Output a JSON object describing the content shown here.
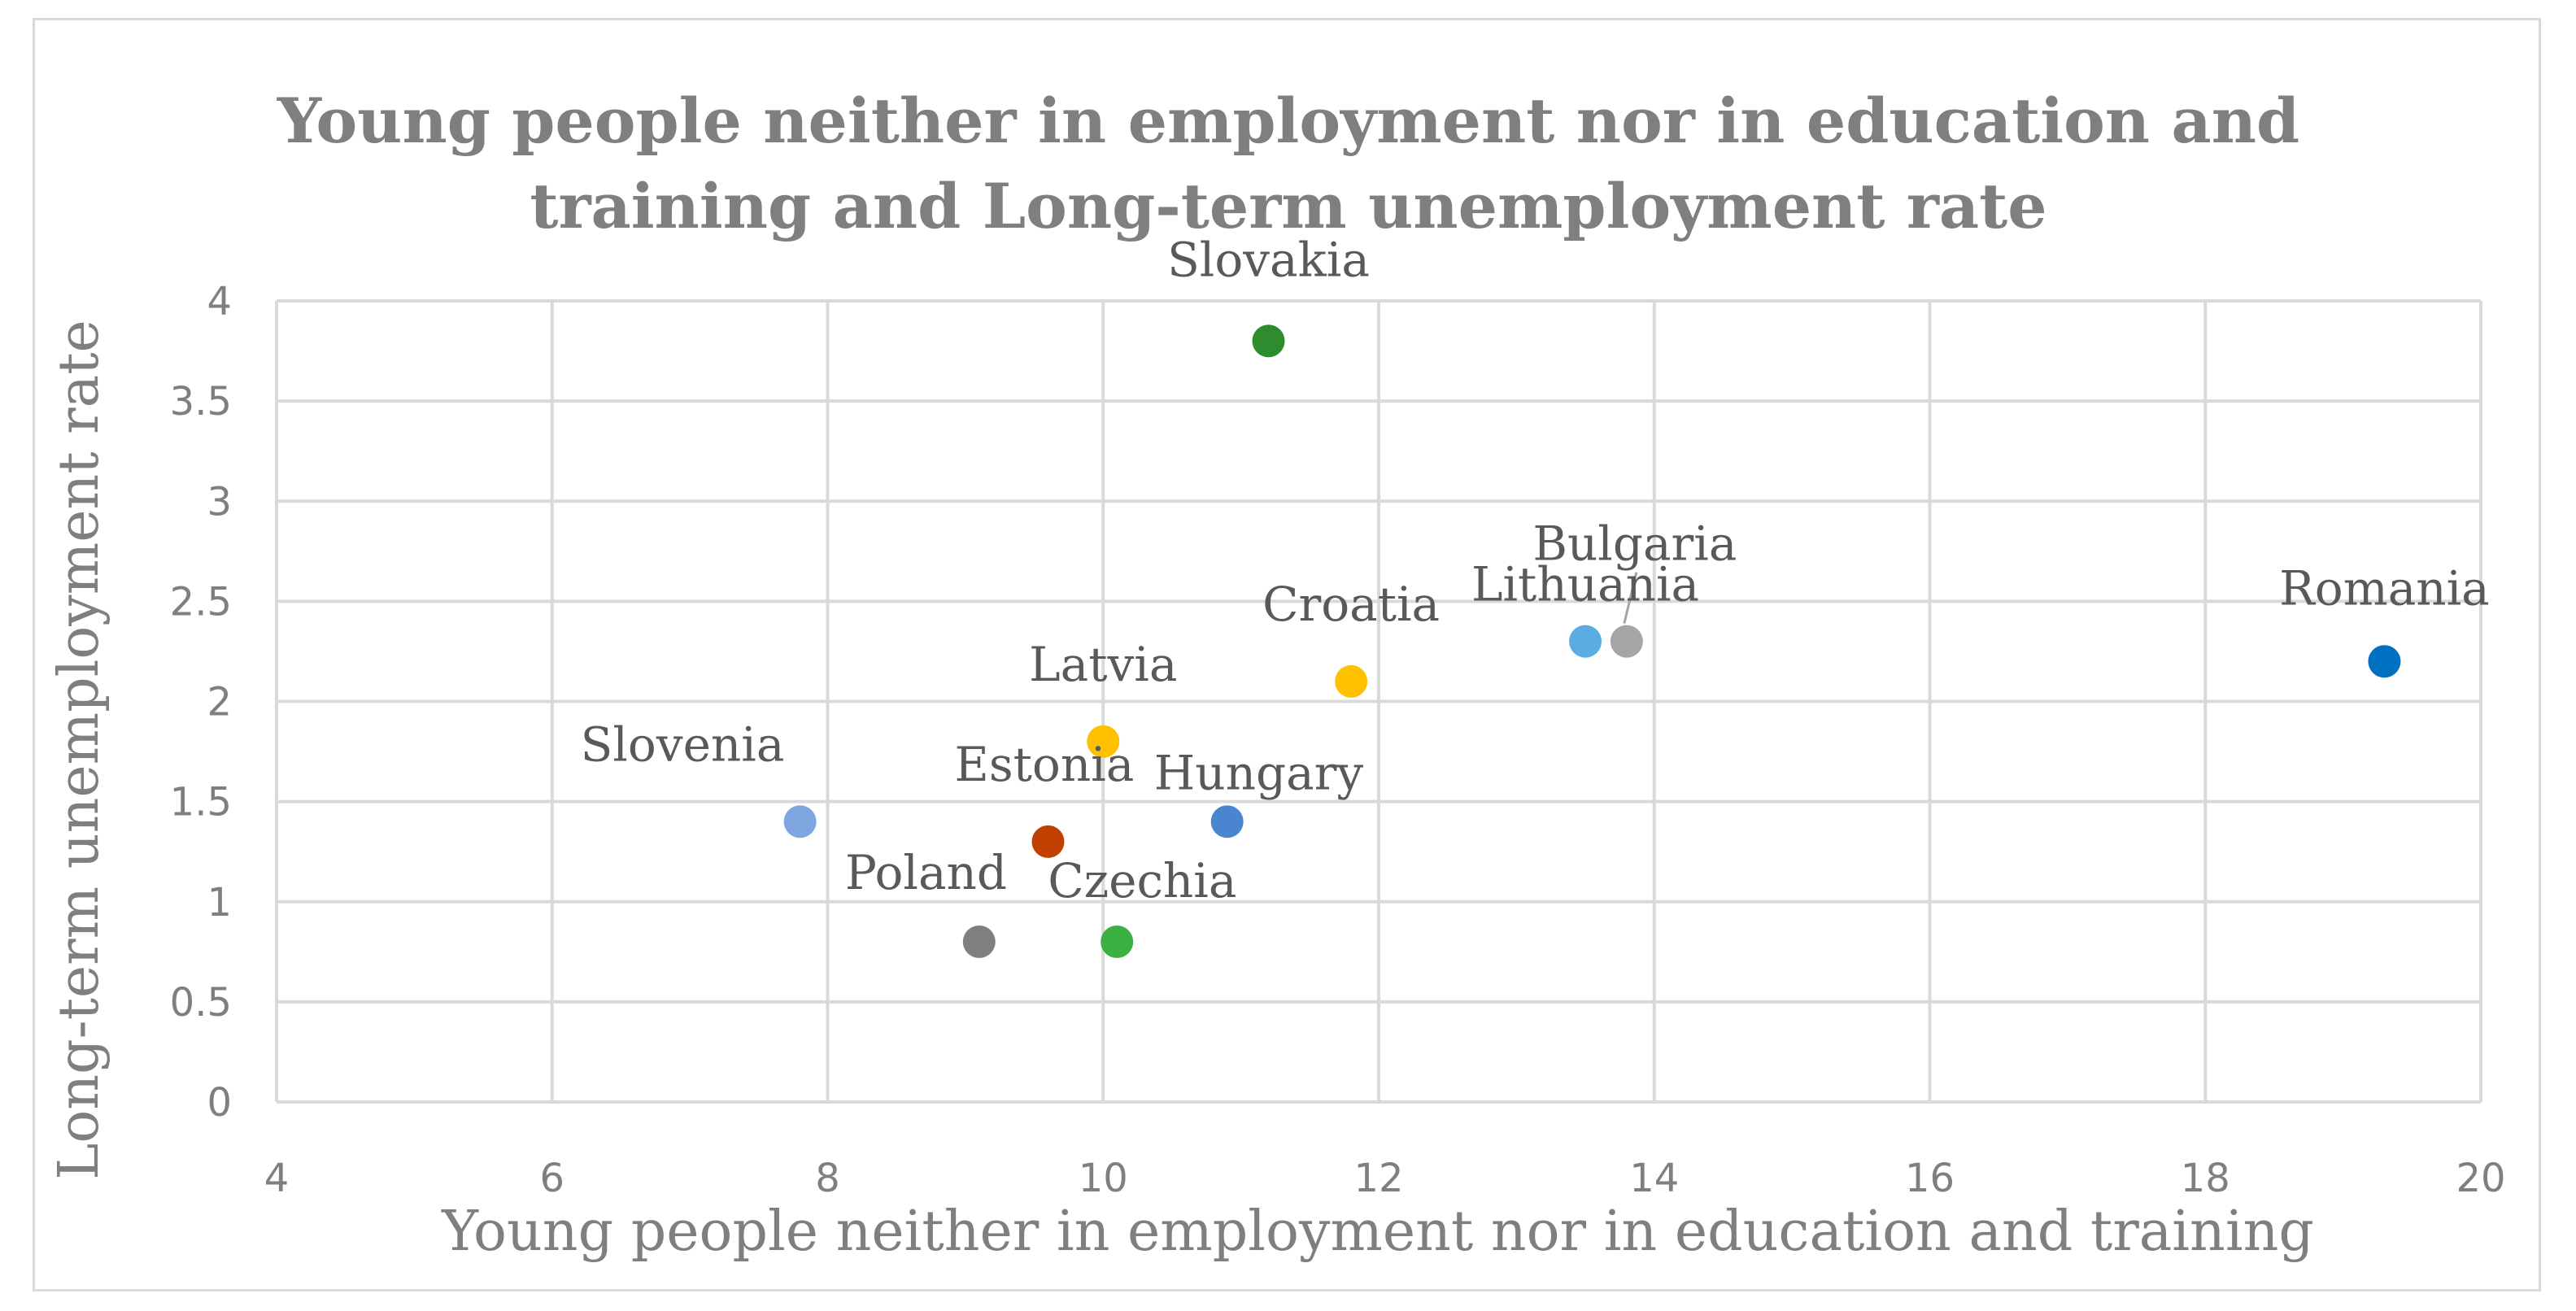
{
  "chart_data": {
    "type": "scatter",
    "title": "Young people neither in employment nor in education and training and Long-term unemployment rate",
    "title_lines": [
      "Young people neither in employment nor in education and",
      "training and Long-term unemployment rate"
    ],
    "xlabel": "Young people neither in employment nor in education and training",
    "ylabel": "Long-term unemployment rate",
    "xlim": [
      4,
      20
    ],
    "ylim": [
      0,
      4
    ],
    "x_ticks": [
      "4",
      "6",
      "8",
      "10",
      "12",
      "14",
      "16",
      "18",
      "20"
    ],
    "y_ticks": [
      "0",
      "0.5",
      "1",
      "1.5",
      "2",
      "2.5",
      "3",
      "3.5",
      "4"
    ],
    "grid": true,
    "legend": "none",
    "points": [
      {
        "label": "Slovakia",
        "x": 11.2,
        "y": 3.8,
        "color": "#2e8b2e"
      },
      {
        "label": "Bulgaria",
        "x": 13.8,
        "y": 2.3,
        "color": "#a5a5a5"
      },
      {
        "label": "Lithuania",
        "x": 13.5,
        "y": 2.3,
        "color": "#5aade3"
      },
      {
        "label": "Romania",
        "x": 19.3,
        "y": 2.2,
        "color": "#0070c0"
      },
      {
        "label": "Croatia",
        "x": 11.8,
        "y": 2.1,
        "color": "#ffc000"
      },
      {
        "label": "Latvia",
        "x": 10.0,
        "y": 1.8,
        "color": "#ffc000"
      },
      {
        "label": "Slovenia",
        "x": 7.8,
        "y": 1.4,
        "color": "#7fa6e0"
      },
      {
        "label": "Estonia",
        "x": 9.6,
        "y": 1.3,
        "color": "#c04000"
      },
      {
        "label": "Hungary",
        "x": 10.9,
        "y": 1.4,
        "color": "#4a86d0"
      },
      {
        "label": "Poland",
        "x": 9.1,
        "y": 0.8,
        "color": "#7f7f7f"
      },
      {
        "label": "Czechia",
        "x": 10.1,
        "y": 0.8,
        "color": "#3cb043"
      }
    ]
  }
}
